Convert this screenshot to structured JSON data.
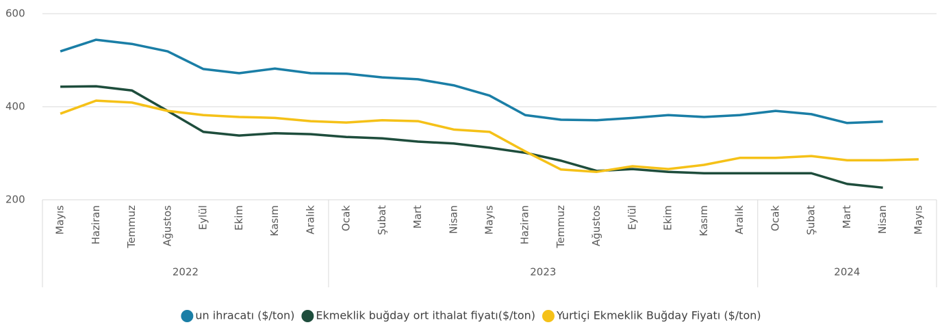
{
  "chart_data": {
    "type": "line",
    "categories": [
      "Mayıs",
      "Haziran",
      "Temmuz",
      "Ağustos",
      "Eylül",
      "Ekim",
      "Kasım",
      "Aralık",
      "Ocak",
      "Şubat",
      "Mart",
      "Nisan",
      "Mayıs",
      "Haziran",
      "Temmuz",
      "Ağustos",
      "Eylül",
      "Ekim",
      "Kasım",
      "Aralık",
      "Ocak",
      "Şubat",
      "Mart",
      "Nisan",
      "Mayıs"
    ],
    "year_groups": [
      {
        "label": "2022",
        "count": 8
      },
      {
        "label": "2023",
        "count": 12
      },
      {
        "label": "2024",
        "count": 5
      }
    ],
    "series": [
      {
        "name": "un ihracatı ($/ton)",
        "color": "#1a7ea6",
        "values": [
          519,
          544,
          535,
          519,
          481,
          472,
          482,
          472,
          471,
          463,
          459,
          446,
          424,
          382,
          372,
          371,
          376,
          382,
          378,
          382,
          391,
          384,
          365,
          368,
          null
        ]
      },
      {
        "name": "Ekmeklik buğday ort ithalat fiyatı($/ton)",
        "color": "#1e4d3c",
        "values": [
          443,
          444,
          435,
          391,
          346,
          338,
          343,
          341,
          335,
          332,
          325,
          321,
          312,
          301,
          284,
          262,
          266,
          260,
          257,
          257,
          257,
          257,
          234,
          226,
          null
        ]
      },
      {
        "name": "Yurtiçi Ekmeklik Buğday Fiyatı ($/ton)",
        "color": "#f5c118",
        "values": [
          385,
          413,
          409,
          391,
          382,
          378,
          376,
          369,
          366,
          371,
          369,
          351,
          346,
          304,
          265,
          260,
          272,
          266,
          275,
          290,
          290,
          294,
          285,
          285,
          287
        ]
      }
    ],
    "ylim": [
      200,
      600
    ],
    "yticks": [
      200,
      400,
      600
    ],
    "grid": true
  }
}
